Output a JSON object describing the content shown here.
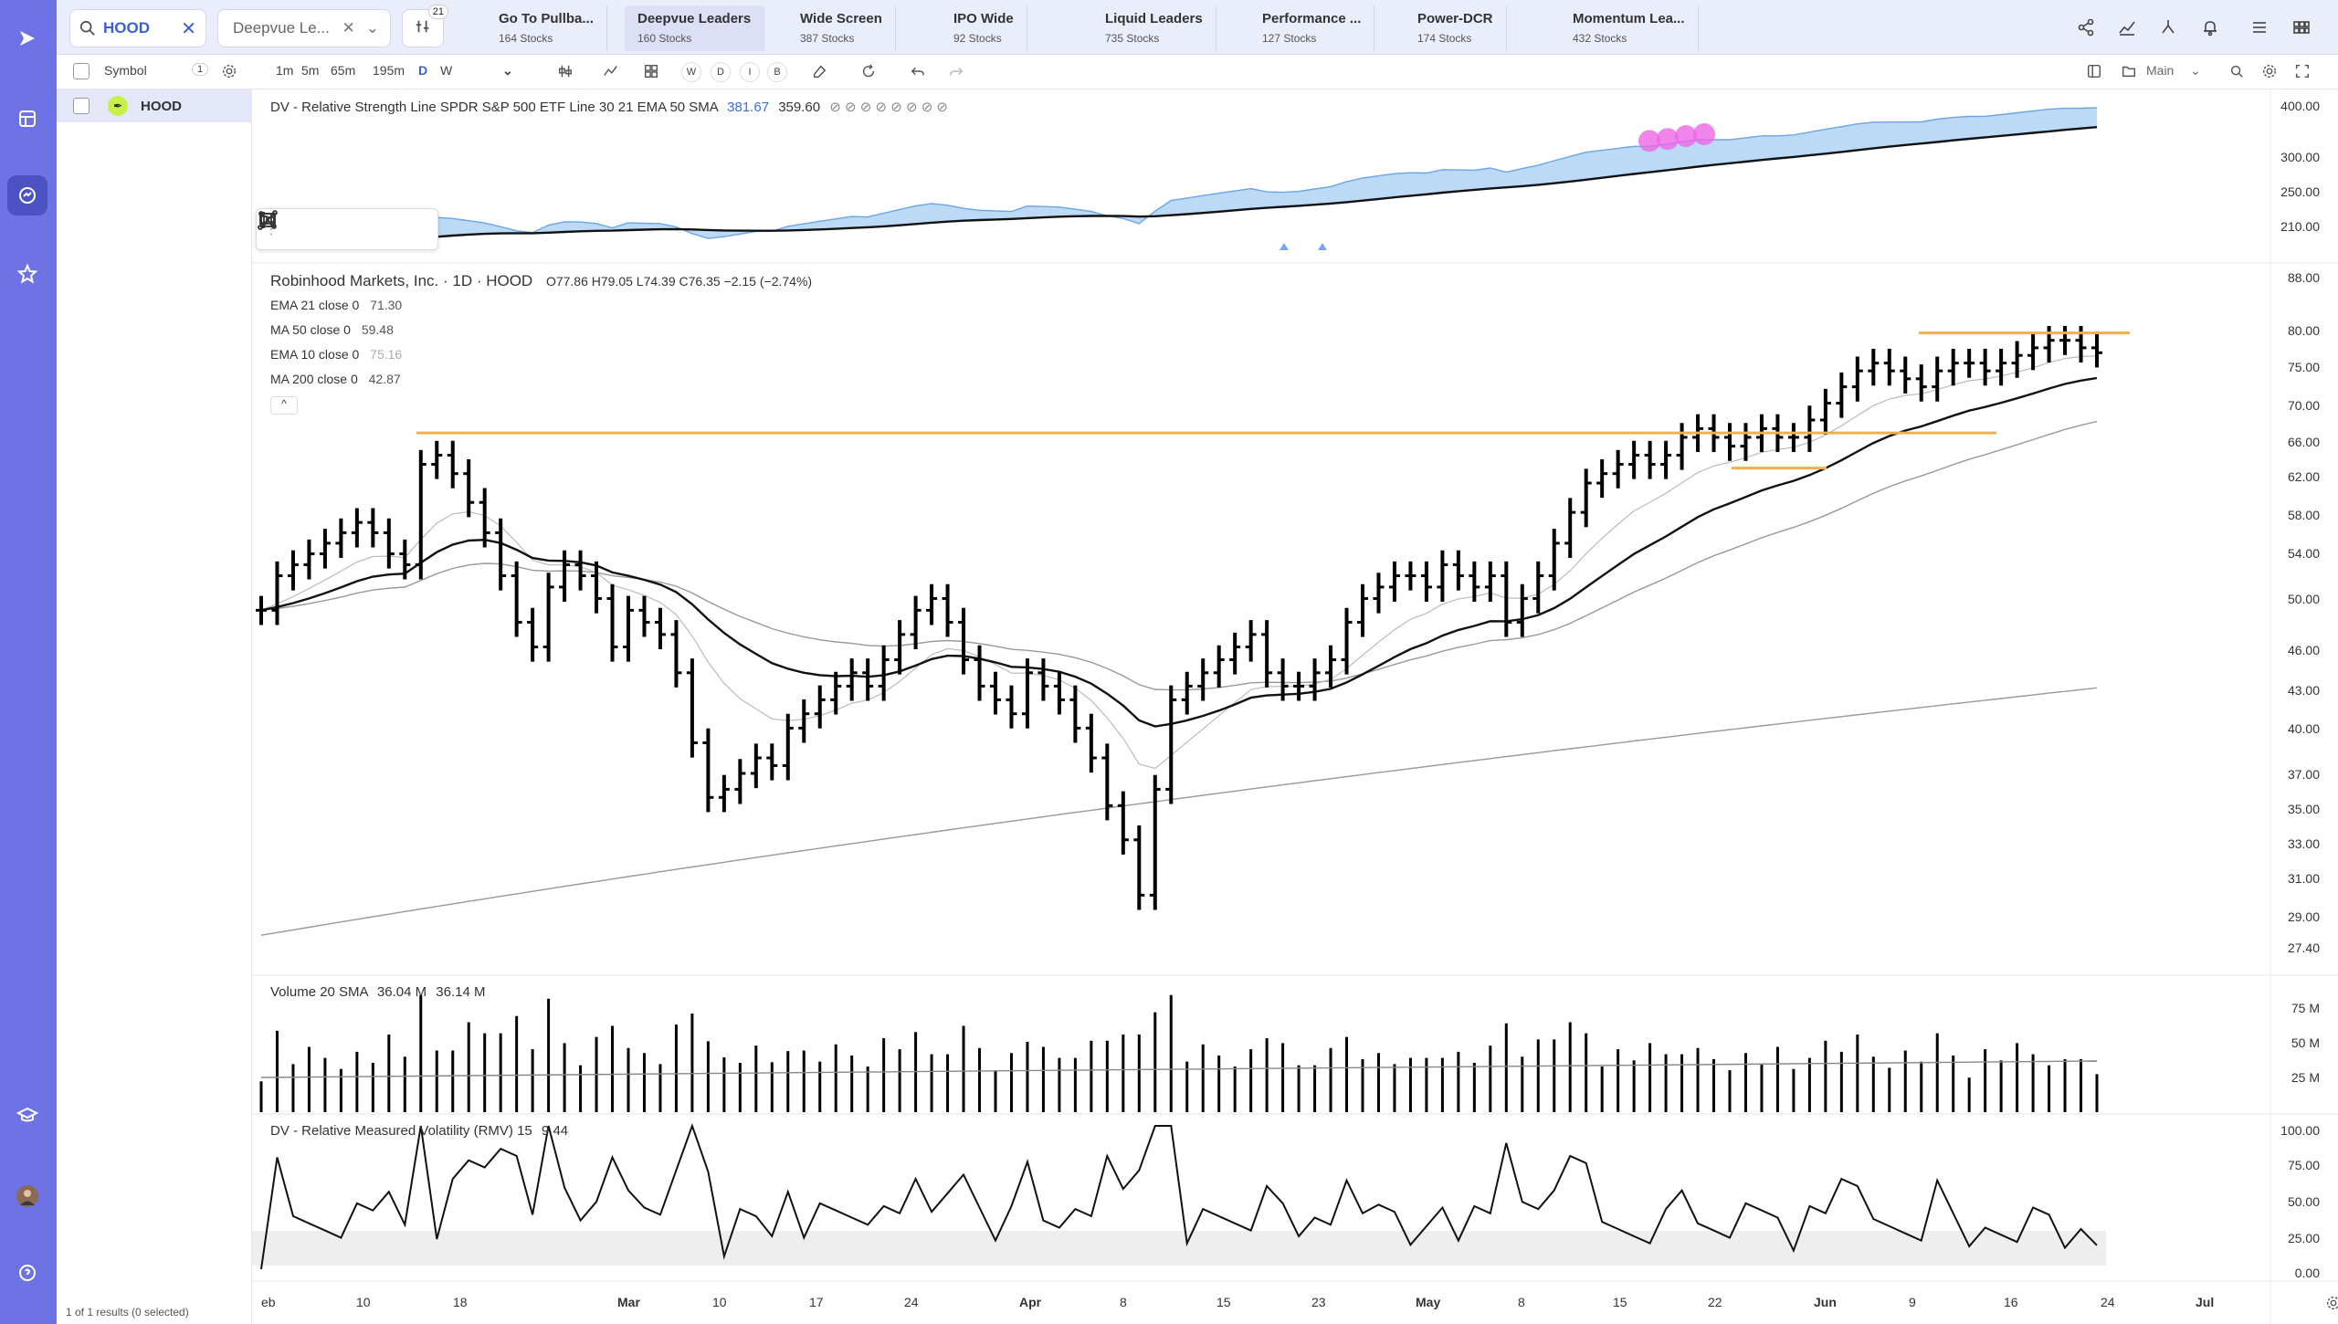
{
  "search": {
    "value": "HOOD"
  },
  "watchlist_select": {
    "value": "Deepvue Le..."
  },
  "filter_badge": "21",
  "watchlist_tabs": [
    {
      "name": "Go To Pullba...",
      "count": "164 Stocks"
    },
    {
      "name": "Deepvue Leaders",
      "count": "160 Stocks"
    },
    {
      "name": "Wide Screen",
      "count": "387 Stocks"
    },
    {
      "name": "IPO Wide",
      "count": "92 Stocks"
    },
    {
      "name": "Liquid Leaders",
      "count": "735 Stocks"
    },
    {
      "name": "Performance ...",
      "count": "127 Stocks"
    },
    {
      "name": "Power-DCR",
      "count": "174 Stocks"
    },
    {
      "name": "Momentum Lea...",
      "count": "432 Stocks"
    }
  ],
  "list": {
    "header": "Symbol",
    "header_count": "1",
    "rows": [
      {
        "symbol": "HOOD"
      }
    ],
    "footer": "1 of 1 results (0 selected)"
  },
  "timeframes": [
    "1m",
    "5m",
    "65m",
    "195m",
    "D",
    "W"
  ],
  "timeframe_active": "D",
  "chart_type_buttons": [
    "W",
    "D",
    "I",
    "B"
  ],
  "layout_select": "Main",
  "rs_panel": {
    "title": "DV - Relative Strength Line SPDR S&P 500 ETF Line 30 21 EMA 50 SMA",
    "value1": "381.67",
    "value2": "359.60",
    "value_color": "#3a6fd8",
    "axis": [
      "400.00",
      "300.00",
      "250.00",
      "210.00"
    ]
  },
  "price_panel": {
    "title": "Robinhood Markets, Inc. · 1D · HOOD",
    "ohlc": "O77.86  H79.05  L74.39  C76.35  −2.15 (−2.74%)",
    "indicators": [
      {
        "name": "EMA 21 close 0",
        "value": "71.30"
      },
      {
        "name": "MA 50 close 0",
        "value": "59.48"
      },
      {
        "name": "EMA 10 close 0",
        "value": "75.16"
      },
      {
        "name": "MA 200 close 0",
        "value": "42.87"
      }
    ],
    "axis": [
      "88.00",
      "80.00",
      "75.00",
      "70.00",
      "66.00",
      "62.00",
      "58.00",
      "54.00",
      "50.00",
      "46.00",
      "43.00",
      "40.00",
      "37.00",
      "35.00",
      "33.00",
      "31.00",
      "29.00",
      "27.40"
    ]
  },
  "volume_panel": {
    "title": "Volume 20 SMA",
    "v1": "36.04 M",
    "v2": "36.14 M",
    "axis": [
      "75 M",
      "50 M",
      "25 M"
    ]
  },
  "rmv_panel": {
    "title": "DV - Relative Measured Volatility (RMV) 15",
    "value": "9.44",
    "axis": [
      "100.00",
      "75.00",
      "50.00",
      "25.00",
      "0.00"
    ]
  },
  "x_axis": [
    "eb",
    "10",
    "18",
    "Mar",
    "10",
    "17",
    "24",
    "Apr",
    "8",
    "15",
    "23",
    "May",
    "8",
    "15",
    "22",
    "Jun",
    "9",
    "16",
    "24",
    "Jul"
  ],
  "chart_data": {
    "type": "bar",
    "title": "Robinhood Markets, Inc. · 1D · HOOD",
    "ylim": [
      27.4,
      88
    ],
    "ohlc_last": {
      "open": 77.86,
      "high": 79.05,
      "low": 74.39,
      "close": 76.35,
      "change": -2.15,
      "change_pct": -2.74
    },
    "closes": [
      49,
      52,
      53,
      54,
      55,
      56,
      57,
      56,
      54,
      53,
      63,
      64,
      62,
      59,
      56,
      52,
      48,
      46,
      51,
      53,
      52,
      50,
      46,
      49,
      48,
      47,
      44,
      39,
      35.5,
      36,
      37,
      38,
      37.5,
      40,
      41,
      42,
      43,
      44,
      43,
      45,
      47,
      49,
      50,
      48,
      45,
      43,
      42,
      41,
      44,
      43,
      42,
      40,
      38,
      35,
      33,
      30,
      36,
      42,
      43,
      44,
      45,
      46,
      47,
      44,
      43,
      43,
      44,
      45,
      48,
      50,
      51,
      52,
      52,
      51,
      53,
      52,
      51,
      52,
      48,
      50,
      52,
      55,
      58,
      61,
      62,
      63,
      64,
      63,
      64,
      66,
      67,
      66,
      65,
      66,
      67,
      66,
      66,
      68,
      70,
      72,
      74,
      75,
      74,
      73,
      72,
      74,
      75,
      75,
      74,
      75,
      76,
      77,
      78,
      78,
      77,
      76.35
    ],
    "ma_values": {
      "EMA 21": 71.3,
      "MA 50": 59.48,
      "EMA 10": 75.16,
      "MA 200": 42.87
    },
    "volume_sma": [
      36.04,
      36.14
    ]
  }
}
